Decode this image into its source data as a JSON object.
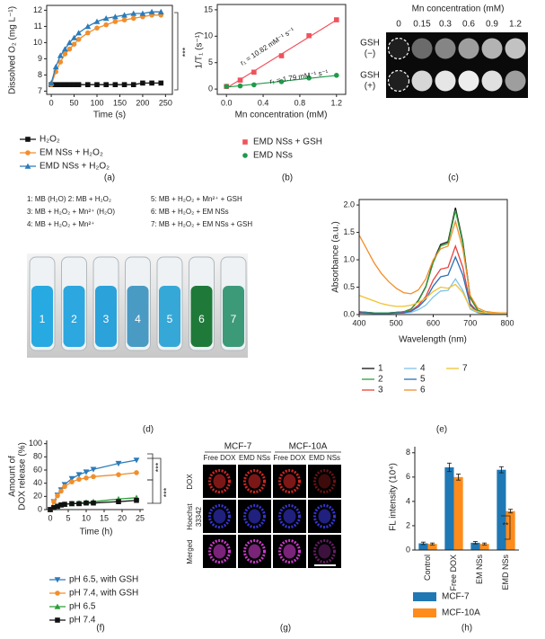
{
  "chart_data": [
    {
      "type": "line",
      "panel_label": "(a)",
      "x_label": "Time (s)",
      "y_label": "Dissolved O₂ (mg L⁻¹)",
      "x": [
        0,
        10,
        20,
        30,
        40,
        50,
        60,
        80,
        100,
        120,
        140,
        160,
        180,
        200,
        220,
        240
      ],
      "xlim": [
        -10,
        265
      ],
      "xticks": [
        0,
        50,
        100,
        150,
        200,
        250
      ],
      "ylim": [
        6.8,
        12.3
      ],
      "yticks": [
        7,
        8,
        9,
        10,
        11,
        12
      ],
      "series": [
        {
          "name": "H₂O₂",
          "color": "#111111",
          "marker": "square",
          "values": [
            7.4,
            7.4,
            7.4,
            7.4,
            7.4,
            7.4,
            7.4,
            7.4,
            7.4,
            7.4,
            7.4,
            7.4,
            7.4,
            7.5,
            7.5,
            7.5
          ]
        },
        {
          "name": "EM NSs + H₂O₂",
          "color": "#f28e2b",
          "marker": "circle",
          "values": [
            7.4,
            8.2,
            8.8,
            9.3,
            9.6,
            9.9,
            10.2,
            10.6,
            10.9,
            11.1,
            11.3,
            11.4,
            11.5,
            11.6,
            11.7,
            11.7
          ]
        },
        {
          "name": "EMD NSs + H₂O₂",
          "color": "#2b7bba",
          "marker": "triangle",
          "values": [
            7.5,
            8.5,
            9.2,
            9.6,
            10.0,
            10.3,
            10.6,
            11.0,
            11.3,
            11.5,
            11.6,
            11.7,
            11.8,
            11.8,
            11.9,
            11.9
          ]
        }
      ],
      "annotations": [
        "***"
      ]
    },
    {
      "type": "scatter",
      "panel_label": "(b)",
      "x_label": "Mn concentration (mM)",
      "y_label": "1/T₁ (s⁻¹)",
      "x": [
        0,
        0.15,
        0.3,
        0.6,
        0.9,
        1.2
      ],
      "xlim": [
        -0.1,
        1.3
      ],
      "xticks": [
        {
          "value": 0,
          "label": "0.0"
        },
        0.4,
        0.8,
        1.2
      ],
      "ylim": [
        -1,
        16
      ],
      "yticks": [
        0,
        5,
        10,
        15
      ],
      "series": [
        {
          "name": "EMD NSs + GSH",
          "color": "#f0525c",
          "marker": "square",
          "values": [
            0.5,
            1.7,
            3.2,
            6.3,
            10.1,
            13.1
          ]
        },
        {
          "name": "EMD NSs",
          "color": "#1e9a4a",
          "marker": "circle",
          "values": [
            0.5,
            0.6,
            0.8,
            1.4,
            2.1,
            2.6
          ]
        }
      ],
      "annotations": [
        "r₁ = 10.82 mM⁻¹ s⁻¹",
        "r₁ = 1.79 mM⁻¹ s⁻¹"
      ]
    },
    {
      "type": "line",
      "panel_label": "(e)",
      "x_label": "Wavelength (nm)",
      "y_label": "Absorbance (a.u.)",
      "x": [
        400,
        420,
        440,
        460,
        480,
        500,
        520,
        540,
        560,
        580,
        600,
        620,
        640,
        660,
        680,
        700,
        720,
        740,
        760,
        780,
        800
      ],
      "xlim": [
        400,
        800
      ],
      "xticks": [
        400,
        500,
        600,
        700,
        800
      ],
      "ylim": [
        0,
        2.1
      ],
      "yticks": [
        {
          "value": 0,
          "label": "0.0"
        },
        0.5,
        {
          "value": 1,
          "label": "1.0"
        },
        1.5,
        {
          "value": 2,
          "label": "2.0"
        }
      ],
      "series": [
        {
          "name": "1",
          "color": "#111111",
          "values": [
            0.05,
            0.04,
            0.03,
            0.03,
            0.03,
            0.04,
            0.05,
            0.1,
            0.26,
            0.51,
            0.97,
            1.28,
            1.33,
            1.95,
            1.33,
            0.31,
            0.08,
            0.03,
            0.02,
            0.02,
            0.02
          ]
        },
        {
          "name": "2",
          "color": "#2e9d3a",
          "values": [
            0.05,
            0.04,
            0.03,
            0.03,
            0.03,
            0.04,
            0.05,
            0.1,
            0.25,
            0.5,
            0.95,
            1.25,
            1.3,
            1.9,
            1.3,
            0.3,
            0.08,
            0.03,
            0.02,
            0.02,
            0.02
          ]
        },
        {
          "name": "3",
          "color": "#e8413c",
          "values": [
            0.04,
            0.03,
            0.02,
            0.02,
            0.02,
            0.03,
            0.04,
            0.07,
            0.17,
            0.33,
            0.63,
            0.83,
            0.86,
            1.25,
            0.86,
            0.2,
            0.05,
            0.02,
            0.01,
            0.01,
            0.01
          ]
        },
        {
          "name": "4",
          "color": "#7fc4e8",
          "values": [
            0.03,
            0.02,
            0.02,
            0.02,
            0.02,
            0.02,
            0.03,
            0.04,
            0.09,
            0.17,
            0.32,
            0.43,
            0.44,
            0.65,
            0.44,
            0.1,
            0.03,
            0.01,
            0.01,
            0.01,
            0.01
          ]
        },
        {
          "name": "5",
          "color": "#2b6fb5",
          "values": [
            0.03,
            0.03,
            0.02,
            0.02,
            0.02,
            0.03,
            0.03,
            0.06,
            0.14,
            0.28,
            0.52,
            0.69,
            0.72,
            1.05,
            0.72,
            0.17,
            0.04,
            0.02,
            0.01,
            0.01,
            0.01
          ]
        },
        {
          "name": "6",
          "color": "#f28e2b",
          "values": [
            1.45,
            1.2,
            0.95,
            0.75,
            0.6,
            0.48,
            0.4,
            0.38,
            0.45,
            0.65,
            1.0,
            1.2,
            1.25,
            1.7,
            1.2,
            0.35,
            0.12,
            0.06,
            0.04,
            0.03,
            0.03
          ]
        },
        {
          "name": "7",
          "color": "#f2c12e",
          "values": [
            0.35,
            0.3,
            0.25,
            0.2,
            0.17,
            0.15,
            0.15,
            0.17,
            0.22,
            0.3,
            0.42,
            0.5,
            0.48,
            0.55,
            0.4,
            0.12,
            0.05,
            0.03,
            0.02,
            0.02,
            0.02
          ]
        }
      ]
    },
    {
      "type": "line",
      "panel_label": "(f)",
      "x_label": "Time (h)",
      "y_label": [
        "Amount of",
        "DOX release (%)"
      ],
      "x": [
        0,
        1,
        2,
        3,
        4,
        6,
        8,
        10,
        12,
        19,
        24
      ],
      "xlim": [
        -1,
        26
      ],
      "xticks": [
        0,
        5,
        10,
        15,
        20,
        25
      ],
      "ylim": [
        0,
        105
      ],
      "yticks": [
        0,
        20,
        40,
        60,
        80,
        100
      ],
      "series": [
        {
          "name": "pH 6.5, with GSH",
          "color": "#2b7bba",
          "marker": "triangle-down",
          "values": [
            0,
            12,
            22,
            30,
            38,
            47,
            53,
            57,
            61,
            70,
            75
          ]
        },
        {
          "name": "pH 7.4, with GSH",
          "color": "#f28e2b",
          "marker": "circle",
          "values": [
            0,
            12,
            21,
            28,
            35,
            42,
            46,
            48,
            50,
            53,
            56
          ]
        },
        {
          "name": "pH 6.5",
          "color": "#2e9d3a",
          "marker": "triangle",
          "values": [
            0,
            3,
            5,
            7,
            8,
            9,
            10,
            11,
            12,
            16,
            18
          ]
        },
        {
          "name": "pH 7.4",
          "color": "#111111",
          "marker": "square",
          "values": [
            0,
            3,
            5,
            7,
            8,
            9,
            9,
            10,
            10,
            12,
            14
          ]
        }
      ],
      "annotations": [
        "***",
        "***"
      ]
    },
    {
      "type": "bar",
      "panel_label": "(h)",
      "y_label": "FL intensity (10⁴)",
      "categories": [
        "Control",
        "Free DOX",
        "EM NSs",
        "EMD NSs"
      ],
      "ylim": [
        0,
        8.5
      ],
      "yticks": [
        0,
        2,
        4,
        6,
        8
      ],
      "series": [
        {
          "name": "MCF-7",
          "color": "#1f78b4",
          "values": [
            0.55,
            6.8,
            0.6,
            6.6
          ],
          "errors": [
            0.1,
            0.35,
            0.1,
            0.25
          ]
        },
        {
          "name": "MCF-10A",
          "color": "#ff8c1a",
          "values": [
            0.5,
            6.0,
            0.5,
            3.2
          ],
          "errors": [
            0.08,
            0.25,
            0.08,
            0.15
          ]
        }
      ],
      "annotations": [
        "**"
      ]
    }
  ],
  "panels": {
    "c": {
      "panel_label": "(c)",
      "title": "Mn concentration (mM)",
      "concentrations": [
        "0",
        "0.15",
        "0.3",
        "0.6",
        "0.9",
        "1.2"
      ],
      "rows": [
        [
          "GSH",
          "(−)"
        ],
        [
          "GSH",
          "(+)"
        ]
      ]
    },
    "d": {
      "panel_label": "(d)",
      "legend": [
        "1: MB (H₂O) 2: MB + H₂O₂",
        "3: MB + H₂O₂ + Mn²⁺ (H₂O)",
        "4: MB + H₂O₂ + Mn²⁺",
        "5: MB + H₂O₂ + Mn²⁺ + GSH",
        "6: MB + H₂O₂ + EM NSs",
        "7: MB + H₂O₂ + EM NSs + GSH"
      ],
      "tubes": [
        "1",
        "2",
        "3",
        "4",
        "5",
        "6",
        "7"
      ]
    },
    "g": {
      "panel_label": "(g)",
      "cell_lines": [
        "MCF-7",
        "MCF-10A"
      ],
      "columns": [
        "Free DOX",
        "EMD NSs",
        "Free DOX",
        "EMD NSs"
      ],
      "rows": [
        [
          "DOX"
        ],
        [
          "Hoechst",
          "33342"
        ],
        [
          "Merged"
        ]
      ]
    }
  }
}
